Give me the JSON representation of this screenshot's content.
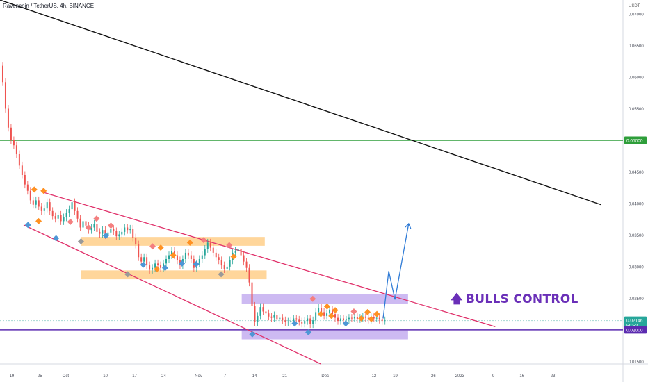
{
  "header": {
    "symbol": "Ravencoin / TetherUS, 4h, BINANCE",
    "currency": "USDT"
  },
  "annotation": {
    "arrow_icon": "up-arrow-icon",
    "text": "BULLS CONTROL"
  },
  "colors": {
    "resistance_green": "#2e9e3a",
    "support_purple": "#5b2bb0",
    "channel_pink": "#e0306a",
    "trend_black": "#111111",
    "zone_orange": "#ffcf8a",
    "zone_purple": "#c4aef0",
    "projection_blue": "#2f7bd6",
    "candle_up": "#26a69a",
    "candle_down": "#ef5350"
  },
  "chart_data": {
    "type": "line",
    "y_scale": "linear",
    "ylim": [
      0.0146,
      0.0722
    ],
    "y_ticks": [
      "0.07000",
      "0.06500",
      "0.06000",
      "0.05500",
      "0.04500",
      "0.04000",
      "0.03500",
      "0.03000",
      "0.02500",
      "0.01500"
    ],
    "x_ticks": [
      "19",
      "25",
      "Oct",
      "10",
      "17",
      "24",
      "Nov",
      "7",
      "14",
      "21",
      "Dec",
      "12",
      "19",
      "26",
      "2023",
      "9",
      "16",
      "23"
    ],
    "price_labels": [
      {
        "label": "0.05000",
        "value": 0.05,
        "color": "#2e9e3a"
      },
      {
        "label": "0.02146",
        "sublabel": "59:52",
        "value": 0.02146,
        "color": "#26a69a"
      },
      {
        "label": "0.02000",
        "value": 0.02,
        "color": "#5b2bb0"
      }
    ],
    "series": [
      {
        "values": [
          0.0618,
          0.0592,
          0.055,
          0.052,
          0.05,
          0.0492,
          0.0478,
          0.046,
          0.0445,
          0.043,
          0.042,
          0.0405,
          0.0398,
          0.0405,
          0.0395,
          0.0388,
          0.0392,
          0.0402,
          0.0388,
          0.038,
          0.0376,
          0.0382,
          0.0372,
          0.0378,
          0.0385,
          0.0391,
          0.0402,
          0.0388,
          0.0376,
          0.0362,
          0.0372,
          0.0365,
          0.0358,
          0.0362,
          0.0368,
          0.0355,
          0.0352,
          0.0358,
          0.035,
          0.0354,
          0.036,
          0.0356,
          0.0348,
          0.0351,
          0.0355,
          0.0362,
          0.0358,
          0.036,
          0.0346,
          0.0335,
          0.0315,
          0.0308,
          0.0315,
          0.0302,
          0.0295,
          0.0298,
          0.0305,
          0.0302,
          0.0298,
          0.0305,
          0.0312,
          0.0318,
          0.0325,
          0.0318,
          0.031,
          0.0302,
          0.0312,
          0.0322,
          0.0318,
          0.0312,
          0.0298,
          0.0305,
          0.0312,
          0.0318,
          0.0328,
          0.0338,
          0.033,
          0.0322,
          0.0315,
          0.031,
          0.0302,
          0.0296,
          0.03,
          0.031,
          0.0322,
          0.0325,
          0.0328,
          0.0318,
          0.0308,
          0.0298,
          0.0275,
          0.0238,
          0.0212,
          0.0222,
          0.0236,
          0.0229,
          0.0226,
          0.0221,
          0.0219,
          0.0223,
          0.0216,
          0.0219,
          0.0215,
          0.0212,
          0.0213,
          0.0214,
          0.0218,
          0.0216,
          0.0213,
          0.021,
          0.0214,
          0.0218,
          0.0209,
          0.0215,
          0.0228,
          0.0235,
          0.0228,
          0.0222,
          0.0226,
          0.0232,
          0.0225,
          0.0219,
          0.0214,
          0.0218,
          0.0215,
          0.0216,
          0.0219,
          0.0218,
          0.022,
          0.0217,
          0.0219,
          0.0221,
          0.0219,
          0.0216,
          0.022,
          0.0218,
          0.0219,
          0.0216,
          0.0214,
          0.0215
        ],
        "x_start": 0,
        "x_end": 0.618
      }
    ],
    "horizontal_lines": [
      {
        "value": 0.05,
        "color": "#2e9e3a"
      },
      {
        "value": 0.02,
        "color": "#5b2bb0"
      },
      {
        "value": 0.02146,
        "color": "#a6d8d2",
        "dashed": true
      }
    ],
    "trend_lines": [
      {
        "name": "long-term-downtrend",
        "color": "#111111",
        "from": [
          0.0,
          0.0722
        ],
        "to": [
          0.965,
          0.0398
        ]
      },
      {
        "name": "channel-upper",
        "color": "#e0306a",
        "from": [
          0.068,
          0.0418
        ],
        "to": [
          0.795,
          0.0205
        ]
      },
      {
        "name": "channel-lower",
        "color": "#e0306a",
        "from": [
          0.038,
          0.0366
        ],
        "to": [
          0.515,
          0.0146
        ]
      }
    ],
    "zones": [
      {
        "color": "#ffcf8a",
        "x": [
          0.13,
          0.425
        ],
        "y": [
          0.0333,
          0.0347
        ]
      },
      {
        "color": "#ffcf8a",
        "x": [
          0.13,
          0.428
        ],
        "y": [
          0.028,
          0.0294
        ]
      },
      {
        "color": "#c4aef0",
        "x": [
          0.388,
          0.655
        ],
        "y": [
          0.0241,
          0.0256
        ]
      },
      {
        "color": "#c4aef0",
        "x": [
          0.388,
          0.655
        ],
        "y": [
          0.0185,
          0.0199
        ]
      }
    ],
    "projection": {
      "color": "#2f7bd6",
      "points": [
        [
          0.615,
          0.0218
        ],
        [
          0.624,
          0.0293
        ],
        [
          0.634,
          0.0248
        ],
        [
          0.656,
          0.0368
        ]
      ]
    },
    "markers": [
      {
        "x": 0.045,
        "y": 0.0366,
        "color": "#4d97d6"
      },
      {
        "x": 0.055,
        "y": 0.0422,
        "color": "#ff9122"
      },
      {
        "x": 0.062,
        "y": 0.0372,
        "color": "#ff9122"
      },
      {
        "x": 0.07,
        "y": 0.042,
        "color": "#ff9122"
      },
      {
        "x": 0.09,
        "y": 0.0345,
        "color": "#4d97d6"
      },
      {
        "x": 0.113,
        "y": 0.0371,
        "color": "#f47f7f"
      },
      {
        "x": 0.13,
        "y": 0.034,
        "color": "#999999"
      },
      {
        "x": 0.142,
        "y": 0.0362,
        "color": "#f47f7f"
      },
      {
        "x": 0.155,
        "y": 0.0376,
        "color": "#f47f7f"
      },
      {
        "x": 0.17,
        "y": 0.0349,
        "color": "#4d97d6"
      },
      {
        "x": 0.178,
        "y": 0.0365,
        "color": "#f47f7f"
      },
      {
        "x": 0.205,
        "y": 0.0288,
        "color": "#999999"
      },
      {
        "x": 0.23,
        "y": 0.0303,
        "color": "#4d97d6"
      },
      {
        "x": 0.245,
        "y": 0.0332,
        "color": "#f47f7f"
      },
      {
        "x": 0.252,
        "y": 0.0296,
        "color": "#ff9122"
      },
      {
        "x": 0.258,
        "y": 0.033,
        "color": "#ff9122"
      },
      {
        "x": 0.265,
        "y": 0.0298,
        "color": "#4d97d6"
      },
      {
        "x": 0.278,
        "y": 0.0318,
        "color": "#ff9122"
      },
      {
        "x": 0.292,
        "y": 0.0305,
        "color": "#4d97d6"
      },
      {
        "x": 0.305,
        "y": 0.0338,
        "color": "#ff9122"
      },
      {
        "x": 0.315,
        "y": 0.0304,
        "color": "#4d97d6"
      },
      {
        "x": 0.327,
        "y": 0.0342,
        "color": "#f47f7f"
      },
      {
        "x": 0.355,
        "y": 0.0288,
        "color": "#999999"
      },
      {
        "x": 0.368,
        "y": 0.0334,
        "color": "#f47f7f"
      },
      {
        "x": 0.375,
        "y": 0.0316,
        "color": "#ff9122"
      },
      {
        "x": 0.405,
        "y": 0.0193,
        "color": "#4d97d6"
      },
      {
        "x": 0.473,
        "y": 0.021,
        "color": "#4d97d6"
      },
      {
        "x": 0.495,
        "y": 0.0196,
        "color": "#4d97d6"
      },
      {
        "x": 0.502,
        "y": 0.0249,
        "color": "#f47f7f"
      },
      {
        "x": 0.515,
        "y": 0.0225,
        "color": "#ff9122"
      },
      {
        "x": 0.525,
        "y": 0.0237,
        "color": "#ff9122"
      },
      {
        "x": 0.532,
        "y": 0.0222,
        "color": "#ff9122"
      },
      {
        "x": 0.538,
        "y": 0.0231,
        "color": "#ff9122"
      },
      {
        "x": 0.555,
        "y": 0.021,
        "color": "#4d97d6"
      },
      {
        "x": 0.568,
        "y": 0.0229,
        "color": "#f47f7f"
      },
      {
        "x": 0.58,
        "y": 0.0218,
        "color": "#ff9122"
      },
      {
        "x": 0.59,
        "y": 0.0228,
        "color": "#ff9122"
      },
      {
        "x": 0.596,
        "y": 0.0217,
        "color": "#ff9122"
      },
      {
        "x": 0.605,
        "y": 0.0225,
        "color": "#ff9122"
      }
    ]
  }
}
